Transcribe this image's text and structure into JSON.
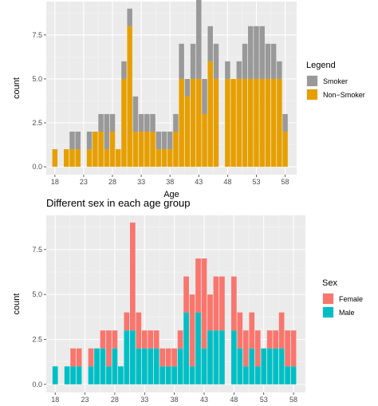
{
  "chart_data": [
    {
      "type": "bar",
      "stacked": true,
      "title": "",
      "xlabel": "Age",
      "ylabel": "count",
      "x": [
        18,
        20,
        21,
        22,
        24,
        25,
        26,
        27,
        28,
        29,
        30,
        31,
        32,
        33,
        34,
        35,
        36,
        37,
        38,
        39,
        40,
        41,
        42,
        43,
        44,
        45,
        46,
        48,
        49,
        50,
        51,
        52,
        53,
        54,
        55,
        56,
        57,
        58
      ],
      "series": [
        {
          "name": "Non−Smoker",
          "color": "#E69F00",
          "values": [
            1,
            1,
            1,
            1,
            1,
            2,
            2,
            1,
            2,
            1,
            5,
            8,
            2,
            2,
            2,
            2,
            1,
            1,
            1,
            2,
            5,
            4,
            5,
            5,
            3,
            6,
            5,
            5,
            5,
            5,
            5,
            5,
            5,
            5,
            5,
            5,
            5,
            2
          ]
        },
        {
          "name": "Smoker",
          "color": "#999999",
          "values": [
            0,
            0,
            1,
            1,
            1,
            0,
            1,
            2,
            1,
            0,
            1,
            1,
            2,
            1,
            1,
            1,
            1,
            1,
            1,
            1,
            2,
            1,
            2,
            5,
            2,
            2,
            2,
            1,
            0,
            1,
            2,
            3,
            3,
            3,
            2,
            2,
            1,
            1
          ]
        }
      ],
      "xticks": [
        18,
        23,
        28,
        33,
        38,
        43,
        48,
        53,
        58
      ],
      "yticks": [
        0,
        2.5,
        5,
        7.5
      ],
      "ytick_labels": [
        "0.0",
        "2.5",
        "5.0",
        "7.5"
      ],
      "xlim": [
        16.5,
        60
      ],
      "ylim": [
        -0.45,
        9.4
      ],
      "legend": {
        "title": "Legend",
        "position": "right",
        "entries": [
          {
            "label": "Smoker",
            "color": "#999999"
          },
          {
            "label": "Non−Smoker",
            "color": "#E69F00"
          }
        ]
      }
    },
    {
      "type": "bar",
      "stacked": true,
      "title": "Different sex in each age group",
      "xlabel": "",
      "ylabel": "count",
      "x": [
        18,
        20,
        21,
        22,
        24,
        25,
        26,
        27,
        28,
        29,
        30,
        31,
        32,
        33,
        34,
        35,
        36,
        37,
        38,
        39,
        40,
        41,
        42,
        43,
        44,
        45,
        46,
        48,
        49,
        50,
        51,
        52,
        53,
        54,
        55,
        56,
        57,
        58
      ],
      "series": [
        {
          "name": "Male",
          "color": "#00BFC4",
          "values": [
            1,
            1,
            1,
            1,
            1,
            2,
            2,
            1,
            2,
            1,
            3,
            3,
            2,
            2,
            2,
            2,
            1,
            1,
            1,
            2,
            4,
            1,
            4,
            2,
            3,
            3,
            3,
            3,
            2,
            1,
            2,
            1,
            2,
            2,
            2,
            2,
            1,
            1
          ]
        },
        {
          "name": "Female",
          "color": "#F8766D",
          "values": [
            0,
            0,
            1,
            1,
            1,
            0,
            1,
            2,
            1,
            0,
            1,
            6,
            2,
            1,
            1,
            1,
            1,
            1,
            1,
            1,
            2,
            4,
            3,
            5,
            2,
            3,
            3,
            3,
            2,
            2,
            2,
            2,
            0,
            1,
            1,
            2,
            2,
            2
          ]
        }
      ],
      "xticks": [
        18,
        23,
        28,
        33,
        38,
        43,
        48,
        53,
        58
      ],
      "yticks": [
        0,
        2.5,
        5,
        7.5
      ],
      "ytick_labels": [
        "0.0",
        "2.5",
        "5.0",
        "7.5"
      ],
      "xlim": [
        16.5,
        60
      ],
      "ylim": [
        -0.45,
        9.4
      ],
      "legend": {
        "title": "Sex",
        "position": "right",
        "entries": [
          {
            "label": "Female",
            "color": "#F8766D"
          },
          {
            "label": "Male",
            "color": "#00BFC4"
          }
        ]
      }
    }
  ]
}
